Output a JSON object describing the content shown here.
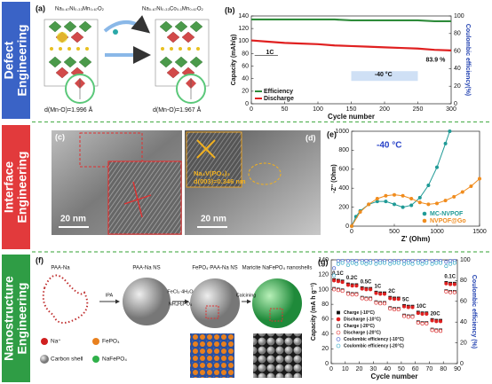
{
  "row_labels": [
    [
      "Defect",
      "Engineering"
    ],
    [
      "Interface",
      "Engineering"
    ],
    [
      "Nanostructure",
      "Engineering"
    ]
  ],
  "panel_a": {
    "label": "(a)",
    "formula_left": "Na₀.₆₇Ni₀.₃₃Mn₀.₆₇O₂",
    "formula_right": "Na₀.₆₇Ni₀.₃₃Co₀.₁Mn₀.₆₇O₂",
    "bond_left": "d(Mn-O)=1.996 Å",
    "bond_right": "d(Mn-O)=1.967 Å"
  },
  "panel_c": {
    "label": "(c)",
    "scale": "20 nm"
  },
  "panel_d": {
    "label": "(d)",
    "scale": "20 nm",
    "phase": "Na₃V(PO₄)₃",
    "spacing": "d(003)=0.346 nm"
  },
  "panel_f": {
    "label": "(f)",
    "stages": [
      "PAA-Na",
      "PAA-Na NS",
      "FePO₄·PAA-Na NS",
      "Maricite NaFePO₄ nanoshells"
    ],
    "steps": [
      [
        "IPA"
      ],
      [
        "FeCl₃·4H₂O",
        "NH₄H₂PO₄"
      ],
      [
        "Calcining"
      ]
    ],
    "legend": [
      "Na⁺",
      "FePO₄",
      "Carbon shell",
      "NaFePO₄"
    ]
  },
  "chart_data": [
    {
      "label": "(b)",
      "type": "line",
      "xlabel": "Cycle number",
      "ylabel": "Capacity (mAh/g)",
      "y2label": "Coulombic efficiency(%)",
      "x": [
        0,
        25,
        50,
        75,
        100,
        125,
        150,
        175,
        200,
        225,
        250,
        275,
        300
      ],
      "xlim": [
        0,
        300
      ],
      "xticks": [
        0,
        50,
        100,
        150,
        200,
        250,
        300
      ],
      "ylim": [
        0,
        140
      ],
      "yticks": [
        0,
        20,
        40,
        60,
        80,
        100,
        120,
        140
      ],
      "y2lim": [
        0,
        100
      ],
      "y2ticks": [
        0,
        20,
        40,
        60,
        80,
        100
      ],
      "series": [
        {
          "name": "Efficiency",
          "color": "#2e8b3a",
          "axis": "y2",
          "values": [
            96,
            96,
            96,
            96,
            96,
            96,
            95,
            95,
            95,
            95,
            95,
            94,
            94
          ]
        },
        {
          "name": "Discharge",
          "color": "#e02020",
          "values": [
            101,
            99,
            97,
            96,
            95,
            93,
            92,
            91,
            90,
            89,
            88,
            86,
            85
          ]
        }
      ],
      "annotations": [
        "1C",
        "-40 °C",
        "83.9 %"
      ],
      "legend": "lower left"
    },
    {
      "label": "(e)",
      "type": "line",
      "markers": true,
      "xlabel": "Z' (Ohm)",
      "ylabel": "-Z'' (Ohm)",
      "xlim": [
        0,
        1500
      ],
      "xticks": [
        0,
        500,
        1000,
        1500
      ],
      "ylim": [
        0,
        1000
      ],
      "yticks": [
        0,
        200,
        400,
        600,
        800,
        1000
      ],
      "series": [
        {
          "name": "MC-NVPOF",
          "color": "#1f9a96",
          "x": [
            0,
            50,
            100,
            200,
            300,
            400,
            500,
            600,
            700,
            800,
            900,
            1000,
            1100,
            1150
          ],
          "values": [
            0,
            100,
            160,
            230,
            260,
            260,
            230,
            200,
            220,
            300,
            430,
            620,
            870,
            1000
          ]
        },
        {
          "name": "NVPOF@Go",
          "color": "#f08c1e",
          "x": [
            0,
            100,
            200,
            300,
            400,
            500,
            600,
            700,
            800,
            900,
            1000,
            1100,
            1200,
            1300,
            1400,
            1500
          ],
          "values": [
            0,
            150,
            230,
            290,
            320,
            330,
            320,
            290,
            250,
            230,
            240,
            270,
            310,
            360,
            420,
            500
          ]
        }
      ],
      "annotations": [
        "-40 °C"
      ],
      "legend": "lower right"
    },
    {
      "label": "(g)",
      "type": "scatter",
      "xlabel": "Cycle number",
      "ylabel": "Capacity (mA h g⁻¹)",
      "y2label": "Coulombic efficiency (%)",
      "x": [
        2,
        5,
        8,
        12,
        15,
        18,
        22,
        25,
        28,
        32,
        35,
        38,
        42,
        45,
        48,
        52,
        55,
        58,
        62,
        65,
        68,
        72,
        75,
        78,
        82,
        85,
        88
      ],
      "xlim": [
        0,
        90
      ],
      "xticks": [
        0,
        10,
        20,
        30,
        40,
        50,
        60,
        70,
        80,
        90
      ],
      "ylim": [
        0,
        140
      ],
      "yticks": [
        0,
        20,
        40,
        60,
        80,
        100,
        120,
        140
      ],
      "y2lim": [
        0,
        100
      ],
      "y2ticks": [
        0,
        20,
        40,
        60,
        80,
        100
      ],
      "series": [
        {
          "name": "Charge (-10°C)",
          "color": "#111111",
          "marker": "square",
          "filled": true,
          "values": [
            113,
            112,
            111,
            107,
            106,
            106,
            102,
            101,
            101,
            96,
            95,
            95,
            89,
            88,
            88,
            78,
            77,
            77,
            69,
            68,
            68,
            59,
            58,
            58,
            109,
            108,
            108
          ]
        },
        {
          "name": "Discharge (-10°C)",
          "color": "#e02020",
          "marker": "circle",
          "filled": true,
          "values": [
            112,
            111,
            110,
            106,
            105,
            105,
            101,
            100,
            100,
            95,
            94,
            94,
            88,
            87,
            87,
            77,
            76,
            76,
            68,
            67,
            67,
            58,
            57,
            57,
            108,
            107,
            107
          ]
        },
        {
          "name": "Charge (-20°C)",
          "color": "#111111",
          "marker": "square",
          "filled": false,
          "values": [
            101,
            100,
            99,
            95,
            94,
            94,
            89,
            88,
            88,
            83,
            82,
            82,
            75,
            74,
            74,
            65,
            64,
            64,
            56,
            55,
            55,
            46,
            45,
            45,
            98,
            97,
            97
          ]
        },
        {
          "name": "Discharge (-20°C)",
          "color": "#e02020",
          "marker": "circle",
          "filled": false,
          "values": [
            100,
            99,
            98,
            94,
            93,
            93,
            88,
            87,
            87,
            82,
            81,
            81,
            74,
            73,
            73,
            64,
            63,
            63,
            55,
            54,
            54,
            45,
            44,
            44,
            97,
            96,
            96
          ]
        },
        {
          "name": "Coulombic efficiency (-10°C)",
          "color": "#3050c8",
          "marker": "circle",
          "filled": false,
          "axis": "y2",
          "values": [
            92,
            99,
            99,
            99,
            99,
            99,
            99,
            99,
            99,
            99,
            99,
            99,
            99,
            99,
            99,
            99,
            99,
            99,
            99,
            99,
            99,
            99,
            99,
            99,
            98,
            99,
            99
          ]
        },
        {
          "name": "Coulombic efficiency (-20°C)",
          "color": "#20a0c0",
          "marker": "circle",
          "filled": false,
          "axis": "y2",
          "values": [
            85,
            96,
            97,
            95,
            97,
            96,
            97,
            96,
            97,
            96,
            97,
            97,
            96,
            97,
            97,
            96,
            97,
            96,
            97,
            96,
            97,
            96,
            97,
            97,
            94,
            96,
            97
          ]
        }
      ],
      "annotations": [
        "0.1C",
        "0.2C",
        "0.5C",
        "1C",
        "2C",
        "5C",
        "10C",
        "20C",
        "0.1C"
      ],
      "legend": "lower left"
    }
  ]
}
